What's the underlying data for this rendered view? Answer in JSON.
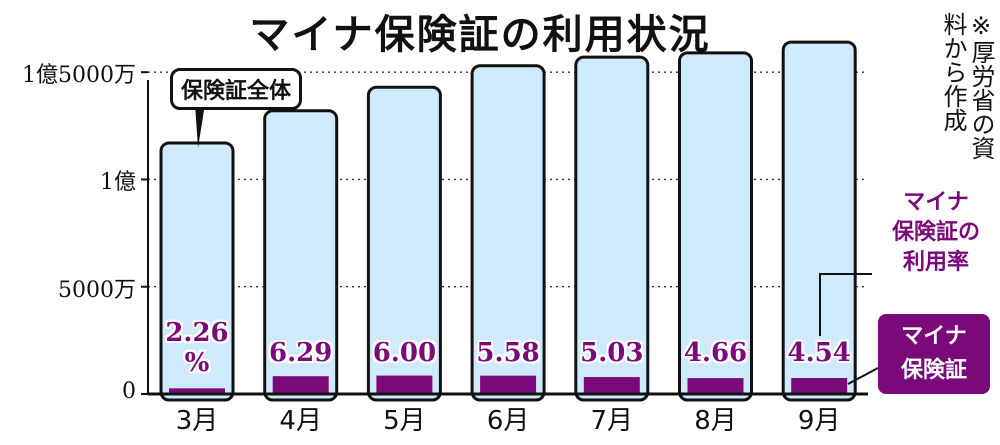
{
  "title": "マイナ保険証の利用状況",
  "source_note": "※厚労省の資料から作成",
  "callout_label": "保険証全体",
  "legend_rate": [
    "マイナ",
    "保険証の",
    "利用率"
  ],
  "legend_card": [
    "マイナ",
    "保険証"
  ],
  "colors": {
    "total_bar": "#cfeafc",
    "mynumber_bar": "#7a0a7a",
    "rate_text": "#7a0a7a"
  },
  "chart_data": {
    "type": "bar",
    "title": "マイナ保険証の利用状況",
    "categories": [
      "3月",
      "4月",
      "5月",
      "6月",
      "7月",
      "8月",
      "9月"
    ],
    "yticks": [
      {
        "value": 0,
        "label": "0"
      },
      {
        "value": 50000000,
        "label": "5000万"
      },
      {
        "value": 100000000,
        "label": "1億"
      },
      {
        "value": 150000000,
        "label": "1億5000万"
      }
    ],
    "ylim": [
      0,
      165000000
    ],
    "grid": "dotted at 5000万, 1億, 1億5000万",
    "series": [
      {
        "name": "保険証全体",
        "values": [
          117000000,
          132000000,
          143000000,
          153000000,
          157000000,
          159000000,
          164000000
        ]
      },
      {
        "name": "マイナ保険証",
        "values": [
          2640000,
          8300000,
          8580000,
          8540000,
          7900000,
          7410000,
          7450000
        ]
      }
    ],
    "rate_labels": [
      "2.26\n%",
      "6.29",
      "6.00",
      "5.58",
      "5.03",
      "4.66",
      "4.54"
    ],
    "rate_values": [
      2.26,
      6.29,
      6.0,
      5.58,
      5.03,
      4.66,
      4.54
    ]
  }
}
